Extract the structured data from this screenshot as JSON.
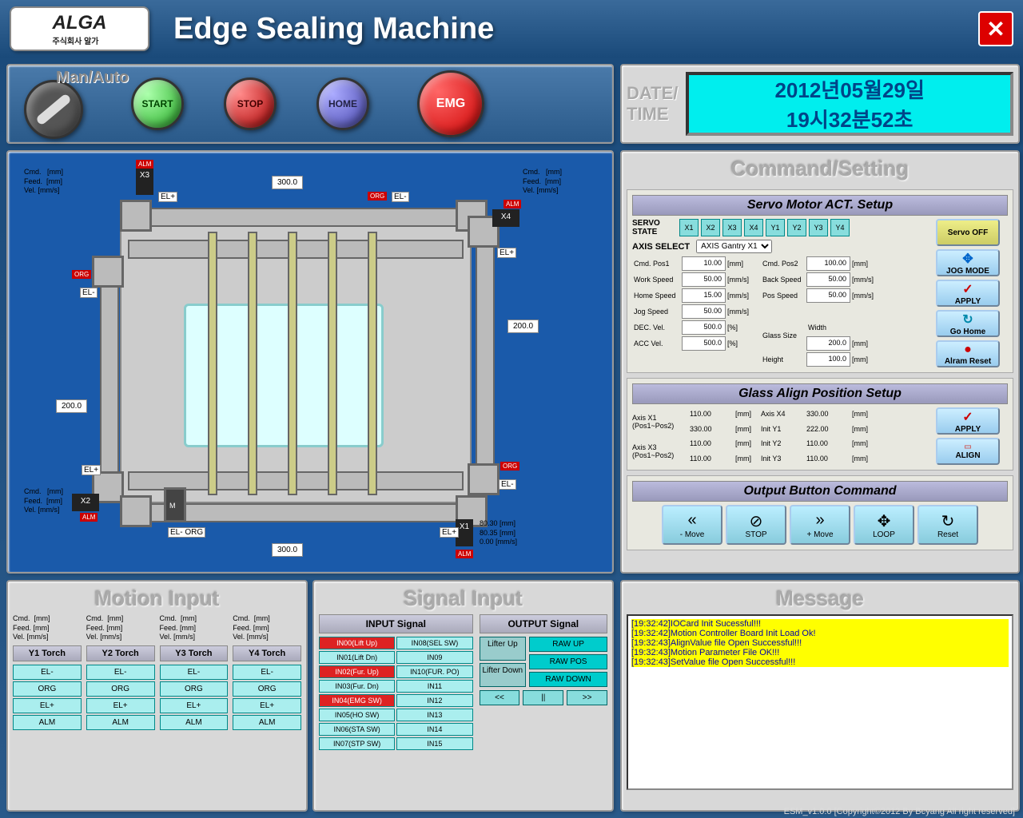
{
  "app": {
    "logo": "ALGA",
    "logo_sub": "주식회사 알가",
    "title": "Edge Sealing Machine",
    "footer": "ESM_v1.0.0 [Copyright©2012 By Bcyang All right reserved]"
  },
  "controls": {
    "manauto": "Man/Auto",
    "start": "START",
    "stop": "STOP",
    "home": "HOME",
    "emg": "EMG"
  },
  "datetime": {
    "label1": "DATE/",
    "label2": "TIME",
    "date": "2012년05월29일",
    "time": "19시32분52초"
  },
  "diagram": {
    "dim_top": "300.0",
    "dim_bottom": "300.0",
    "dim_left": "200.0",
    "dim_right": "200.0",
    "axes": [
      "X1",
      "X2",
      "X3",
      "X4"
    ],
    "cmd_labels": {
      "cmd": "Cmd.",
      "feed": "Feed.",
      "vel": "Vel.",
      "mm": "[mm]",
      "mms": "[mm/s]"
    },
    "x1": {
      "cmd": "80.30",
      "feed": "80.35",
      "vel": "0.00"
    }
  },
  "cmdset": {
    "title": "Command/Setting",
    "servo": {
      "title": "Servo Motor ACT. Setup",
      "state_label": "SERVO STATE",
      "states": [
        "X1",
        "X2",
        "X3",
        "X4",
        "Y1",
        "Y2",
        "Y3",
        "Y4"
      ],
      "axis_select_label": "AXIS SELECT",
      "axis_select_value": "AXIS Gantry X1",
      "params": {
        "cmd_pos1": {
          "lbl": "Cmd. Pos1",
          "val": "10.00",
          "unit": "[mm]"
        },
        "cmd_pos2": {
          "lbl": "Cmd. Pos2",
          "val": "100.00",
          "unit": "[mm]"
        },
        "work_speed": {
          "lbl": "Work Speed",
          "val": "50.00",
          "unit": "[mm/s]"
        },
        "back_speed": {
          "lbl": "Back Speed",
          "val": "50.00",
          "unit": "[mm/s]"
        },
        "home_speed": {
          "lbl": "Home Speed",
          "val": "15.00",
          "unit": "[mm/s]"
        },
        "pos_speed": {
          "lbl": "Pos Speed",
          "val": "50.00",
          "unit": "[mm/s]"
        },
        "jog_speed": {
          "lbl": "Jog Speed",
          "val": "50.00",
          "unit": "[mm/s]"
        },
        "dec_vel": {
          "lbl": "DEC. Vel.",
          "val": "500.0",
          "unit": "[%]"
        },
        "acc_vel": {
          "lbl": "ACC Vel.",
          "val": "500.0",
          "unit": "[%]"
        },
        "glass_w": {
          "lbl": "Width",
          "val": "200.0",
          "unit": "[mm]"
        },
        "glass_h": {
          "lbl": "Height",
          "val": "100.0",
          "unit": "[mm]"
        },
        "glass_size": "Glass Size"
      },
      "side": {
        "servo_off": "Servo OFF",
        "jog": "JOG MODE",
        "apply": "APPLY",
        "gohome": "Go Home",
        "alarm": "Alram Reset"
      }
    },
    "glass": {
      "title": "Glass Align Position Setup",
      "rows": [
        {
          "lbl": "Axis X1 (Pos1~Pos2)",
          "v1": "110.00",
          "v2": "330.00"
        },
        {
          "lbl": "Axis X3 (Pos1~Pos2)",
          "v1": "110.00",
          "v2": "110.00"
        }
      ],
      "right": [
        {
          "lbl": "Axis X4",
          "val": "330.00"
        },
        {
          "lbl": "Init Y1",
          "val": "222.00"
        },
        {
          "lbl": "Init Y2",
          "val": "110.00"
        },
        {
          "lbl": "Init Y3",
          "val": "110.00"
        }
      ],
      "apply": "APPLY",
      "align": "ALIGN"
    },
    "output": {
      "title": "Output Button Command",
      "btns": [
        {
          "ico": "«",
          "lbl": "- Move"
        },
        {
          "ico": "⊘",
          "lbl": "STOP"
        },
        {
          "ico": "»",
          "lbl": "+ Move"
        },
        {
          "ico": "✥",
          "lbl": "LOOP"
        },
        {
          "ico": "↻",
          "lbl": "Reset"
        }
      ]
    }
  },
  "motion": {
    "title": "Motion Input",
    "hdr": {
      "cmd": "Cmd.",
      "feed": "Feed.",
      "vel": "Vel.",
      "mm": "[mm]",
      "mms": "[mm/s]"
    },
    "torches": [
      "Y1 Torch",
      "Y2 Torch",
      "Y3 Torch",
      "Y4 Torch"
    ],
    "cells": [
      "EL-",
      "ORG",
      "EL+",
      "ALM"
    ]
  },
  "signal": {
    "title": "Signal Input",
    "input_title": "INPUT Signal",
    "output_title": "OUTPUT Signal",
    "inputs_left": [
      "IN00(Lift Up)",
      "IN01(Lift Dn)",
      "IN02(Fur. Up)",
      "IN03(Fur. Dn)",
      "IN04(EMG SW)",
      "IN05(HO SW)",
      "IN06(STA SW)",
      "IN07(STP SW)"
    ],
    "inputs_right": [
      "IN08(SEL SW)",
      "IN09",
      "IN10(FUR. PO)",
      "IN11",
      "IN12",
      "IN13",
      "IN14",
      "IN15"
    ],
    "inputs_red": [
      0,
      2,
      4
    ],
    "outputs": [
      "RAW UP",
      "RAW POS",
      "RAW DOWN"
    ],
    "lifter": [
      "Lifter Up",
      "Lifter Down"
    ],
    "nav": [
      "<<",
      "||",
      ">>"
    ]
  },
  "message": {
    "title": "Message",
    "lines": [
      "[19:32:42]IOCard Init Sucessful!!!",
      "[19:32:42]Motion Controller Board Init Load Ok!",
      "[19:32:43]AlignValue file Open Successful!!!",
      "[19:32:43]Motion Parameter File OK!!!",
      "[19:32:43]SetValue file Open Successful!!!"
    ]
  }
}
